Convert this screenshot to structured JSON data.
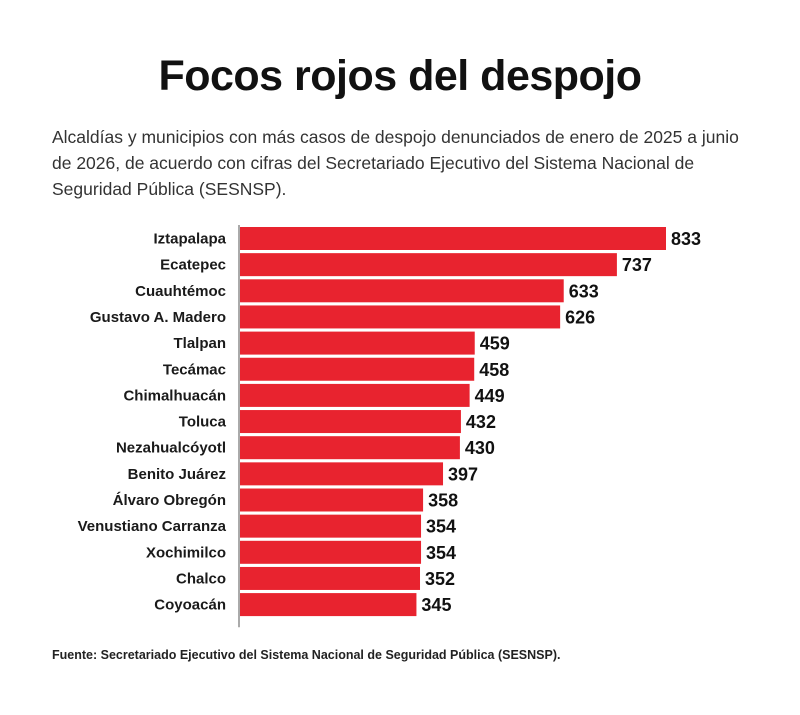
{
  "header": {
    "title": "Focos rojos del despojo",
    "subtitle": "Alcaldías y municipios con más casos de despojo denunciados de enero de 2025 a junio de 2026, de acuerdo con cifras del Secretariado Ejecutivo del Sistema Nacional de Seguridad Pública (SESNSP)."
  },
  "footer": {
    "source": "Fuente: Secretariado Ejecutivo del Sistema Nacional de Seguridad Pública (SESNSP)."
  },
  "colors": {
    "bar": "#e8232f",
    "axis": "#555555"
  },
  "chart_data": {
    "type": "bar",
    "orientation": "horizontal",
    "categories": [
      "Iztapalapa",
      "Ecatepec",
      "Cuauhtémoc",
      "Gustavo A. Madero",
      "Tlalpan",
      "Tecámac",
      "Chimalhuacán",
      "Toluca",
      "Nezahualcóyotl",
      "Benito Juárez",
      "Álvaro Obregón",
      "Venustiano Carranza",
      "Xochimilco",
      "Chalco",
      "Coyoacán"
    ],
    "values": [
      833,
      737,
      633,
      626,
      459,
      458,
      449,
      432,
      430,
      397,
      358,
      354,
      354,
      352,
      345
    ],
    "xlim": [
      0,
      833
    ],
    "grid": false,
    "legend": "none"
  }
}
